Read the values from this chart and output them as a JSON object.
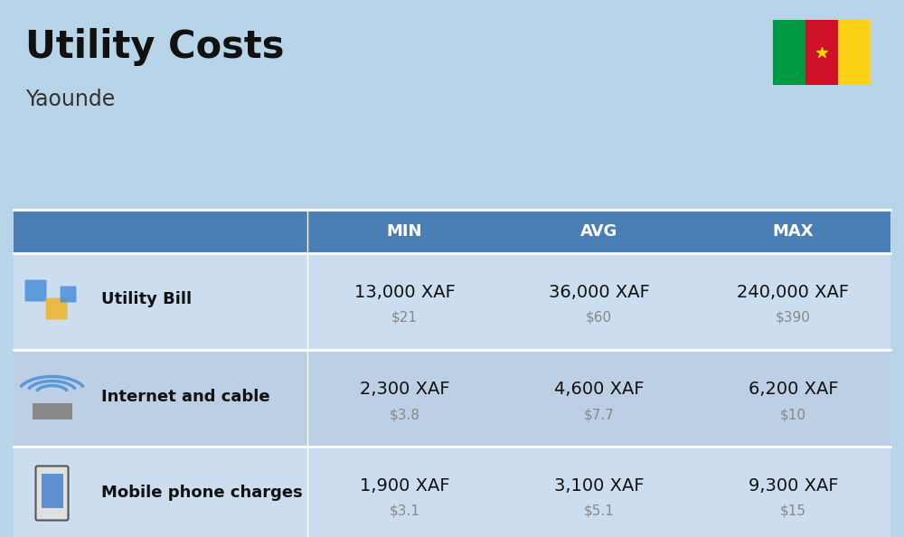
{
  "title": "Utility Costs",
  "subtitle": "Yaounde",
  "background_color": "#b8d4e8",
  "header_bg_color": "#4a7fb5",
  "header_text_color": "#ffffff",
  "row_bg_color_1": "#ccddf0",
  "row_bg_color_2": "#bccfe4",
  "divider_color": "#ffffff",
  "col_header_labels": [
    "MIN",
    "AVG",
    "MAX"
  ],
  "rows": [
    {
      "label": "Utility Bill",
      "min_xaf": "13,000 XAF",
      "min_usd": "$21",
      "avg_xaf": "36,000 XAF",
      "avg_usd": "$60",
      "max_xaf": "240,000 XAF",
      "max_usd": "$390"
    },
    {
      "label": "Internet and cable",
      "min_xaf": "2,300 XAF",
      "min_usd": "$3.8",
      "avg_xaf": "4,600 XAF",
      "avg_usd": "$7.7",
      "max_xaf": "6,200 XAF",
      "max_usd": "$10"
    },
    {
      "label": "Mobile phone charges",
      "min_xaf": "1,900 XAF",
      "min_usd": "$3.1",
      "avg_xaf": "3,100 XAF",
      "avg_usd": "$5.1",
      "max_xaf": "9,300 XAF",
      "max_usd": "$15"
    }
  ],
  "flag_colors": [
    "#009a44",
    "#ce1126",
    "#fcd116"
  ],
  "title_fontsize": 30,
  "subtitle_fontsize": 17,
  "header_fontsize": 13,
  "label_fontsize": 13,
  "value_fontsize": 14,
  "usd_fontsize": 11
}
